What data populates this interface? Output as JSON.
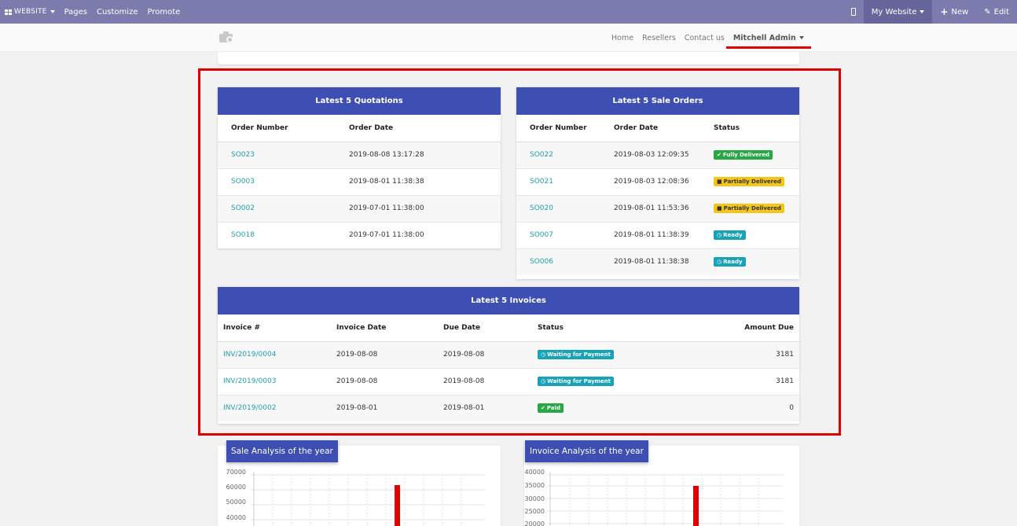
{
  "topbar": {
    "website_label": "WEBSITE",
    "menu": [
      "Pages",
      "Customize",
      "Promote"
    ],
    "my_website": "My Website",
    "new_label": "New",
    "edit_label": "Edit"
  },
  "site_nav": {
    "items": [
      "Home",
      "Resellers",
      "Contact us"
    ],
    "user": "Mitchell Admin"
  },
  "quotations": {
    "title": "Latest 5 Quotations",
    "headers": [
      "Order Number",
      "Order Date"
    ],
    "rows": [
      {
        "number": "SO023",
        "date": "2019-08-08 13:17:28"
      },
      {
        "number": "SO003",
        "date": "2019-08-01 11:38:38"
      },
      {
        "number": "SO002",
        "date": "2019-07-01 11:38:00"
      },
      {
        "number": "SO018",
        "date": "2019-07-01 11:38:00"
      }
    ]
  },
  "sale_orders": {
    "title": "Latest 5 Sale Orders",
    "headers": [
      "Order Number",
      "Order Date",
      "Status"
    ],
    "rows": [
      {
        "number": "SO022",
        "date": "2019-08-03 12:09:35",
        "status": "Fully Delivered",
        "color": "#28a745",
        "icon": "check-icon"
      },
      {
        "number": "SO021",
        "date": "2019-08-03 12:08:36",
        "status": "Partially Delivered",
        "color": "#f5c518",
        "icon": "truck-icon"
      },
      {
        "number": "SO020",
        "date": "2019-08-01 11:53:36",
        "status": "Partially Delivered",
        "color": "#f5c518",
        "icon": "truck-icon"
      },
      {
        "number": "SO007",
        "date": "2019-08-01 11:38:39",
        "status": "Ready",
        "color": "#17a2b8",
        "icon": "clock-icon"
      },
      {
        "number": "SO006",
        "date": "2019-08-01 11:38:38",
        "status": "Ready",
        "color": "#17a2b8",
        "icon": "clock-icon"
      }
    ]
  },
  "invoices": {
    "title": "Latest 5 Invoices",
    "headers": [
      "Invoice #",
      "Invoice Date",
      "Due Date",
      "Status",
      "Amount Due"
    ],
    "rows": [
      {
        "number": "INV/2019/0004",
        "date": "2019-08-08",
        "due": "2019-08-08",
        "status": "Waiting for Payment",
        "amount": "3181",
        "color": "#17a2b8",
        "icon": "clock-icon"
      },
      {
        "number": "INV/2019/0003",
        "date": "2019-08-08",
        "due": "2019-08-08",
        "status": "Waiting for Payment",
        "amount": "3181",
        "color": "#17a2b8",
        "icon": "clock-icon"
      },
      {
        "number": "INV/2019/0002",
        "date": "2019-08-01",
        "due": "2019-08-01",
        "status": "Paid",
        "amount": "0",
        "color": "#28a745",
        "icon": "check-icon"
      }
    ]
  },
  "sale_chart": {
    "title": "Sale Analysis of the year",
    "yticks": [
      "70000",
      "60000",
      "50000",
      "40000"
    ],
    "bar_color": "#e00000"
  },
  "invoice_chart": {
    "title": "Invoice Analysis of the year",
    "yticks": [
      "40000",
      "35000",
      "30000",
      "25000",
      "20000"
    ],
    "bar_color": "#e00000"
  }
}
